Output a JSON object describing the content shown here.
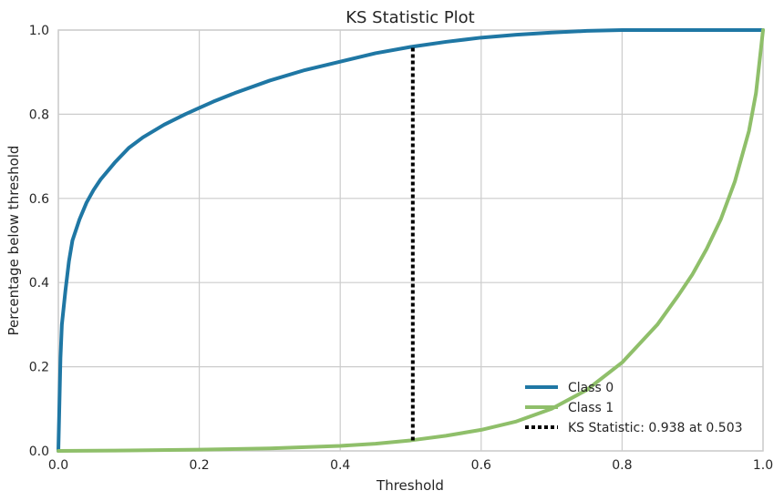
{
  "chart_data": {
    "type": "line",
    "title": "KS Statistic Plot",
    "xlabel": "Threshold",
    "ylabel": "Percentage below threshold",
    "xlim": [
      0.0,
      1.0
    ],
    "ylim": [
      0.0,
      1.0
    ],
    "xticks": [
      "0.0",
      "0.2",
      "0.4",
      "0.6",
      "0.8",
      "1.0"
    ],
    "yticks": [
      "0.0",
      "0.2",
      "0.4",
      "0.6",
      "0.8",
      "1.0"
    ],
    "grid": true,
    "legend_position": "lower-right",
    "series": [
      {
        "name": "Class 0",
        "color": "#1f77a4",
        "x": [
          0.0,
          0.003,
          0.005,
          0.01,
          0.015,
          0.02,
          0.03,
          0.04,
          0.05,
          0.06,
          0.08,
          0.1,
          0.12,
          0.15,
          0.18,
          0.2,
          0.22,
          0.25,
          0.3,
          0.35,
          0.4,
          0.45,
          0.5,
          0.55,
          0.6,
          0.65,
          0.7,
          0.75,
          0.8,
          1.0
        ],
        "y": [
          0.0,
          0.22,
          0.3,
          0.38,
          0.45,
          0.5,
          0.55,
          0.59,
          0.62,
          0.645,
          0.685,
          0.72,
          0.745,
          0.775,
          0.8,
          0.815,
          0.83,
          0.85,
          0.88,
          0.905,
          0.925,
          0.945,
          0.96,
          0.972,
          0.982,
          0.989,
          0.994,
          0.998,
          1.0,
          1.0
        ]
      },
      {
        "name": "Class 1",
        "color": "#8fbf6a",
        "x": [
          0.0,
          0.1,
          0.2,
          0.3,
          0.35,
          0.4,
          0.45,
          0.5,
          0.55,
          0.6,
          0.65,
          0.7,
          0.75,
          0.8,
          0.85,
          0.88,
          0.9,
          0.92,
          0.94,
          0.96,
          0.98,
          0.99,
          1.0
        ],
        "y": [
          0.0,
          0.001,
          0.003,
          0.006,
          0.009,
          0.012,
          0.017,
          0.025,
          0.036,
          0.05,
          0.07,
          0.1,
          0.145,
          0.21,
          0.3,
          0.37,
          0.42,
          0.48,
          0.55,
          0.64,
          0.76,
          0.85,
          1.0
        ]
      }
    ],
    "ks_line": {
      "label": "KS Statistic: 0.938 at 0.503",
      "x": 0.503,
      "y_from": 0.025,
      "y_to": 0.963,
      "color": "#000000"
    }
  }
}
